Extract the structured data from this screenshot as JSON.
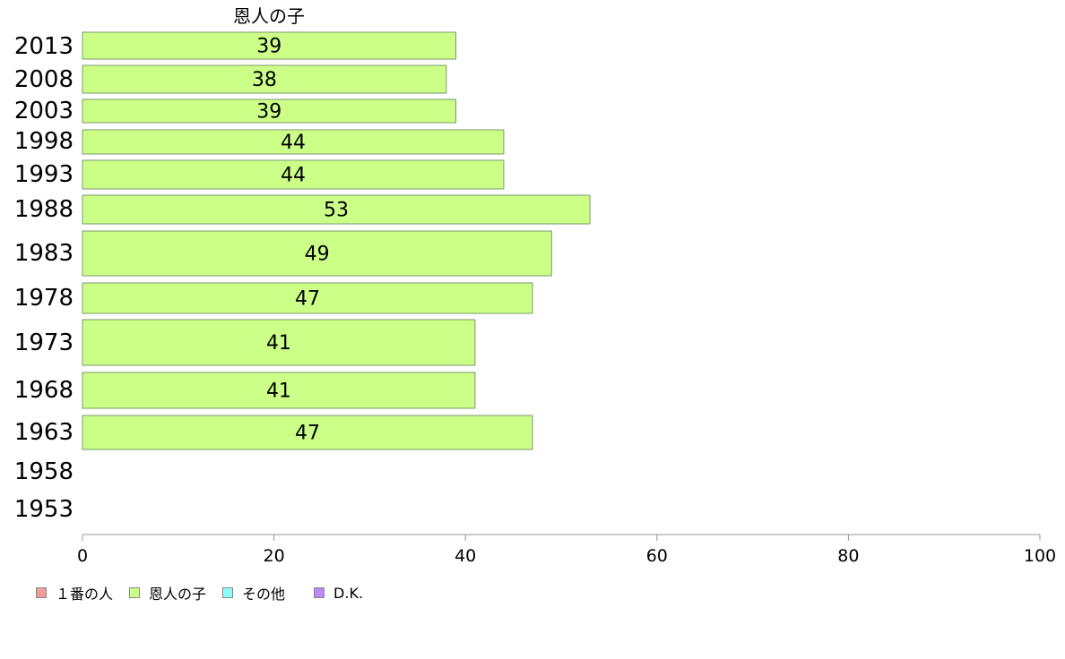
{
  "chart_data": {
    "type": "bar",
    "orientation": "horizontal",
    "title": "恩人の子",
    "categories": [
      "2013",
      "2008",
      "2003",
      "1998",
      "1993",
      "1988",
      "1983",
      "1978",
      "1973",
      "1968",
      "1963",
      "1958",
      "1953"
    ],
    "series": [
      {
        "name": "恩人の子",
        "color": "#ccff88",
        "values": [
          39,
          38,
          39,
          44,
          44,
          53,
          49,
          47,
          41,
          41,
          47,
          null,
          null
        ],
        "value_labels": [
          "39",
          "38",
          "39",
          "44",
          "44",
          "53",
          "49",
          "47",
          "41",
          "41",
          "47",
          "",
          ""
        ]
      }
    ],
    "x_ticks": [
      "0",
      "20",
      "40",
      "60",
      "80",
      "100"
    ],
    "xlim": [
      0,
      100
    ],
    "grid": false,
    "legend_position": "bottom-left"
  },
  "legend": [
    {
      "label": "１番の人",
      "color": "#f49a9a"
    },
    {
      "label": "恩人の子",
      "color": "#ccff88"
    },
    {
      "label": "その他",
      "color": "#88ffff"
    },
    {
      "label": "D.K.",
      "color": "#bb88ff"
    }
  ]
}
